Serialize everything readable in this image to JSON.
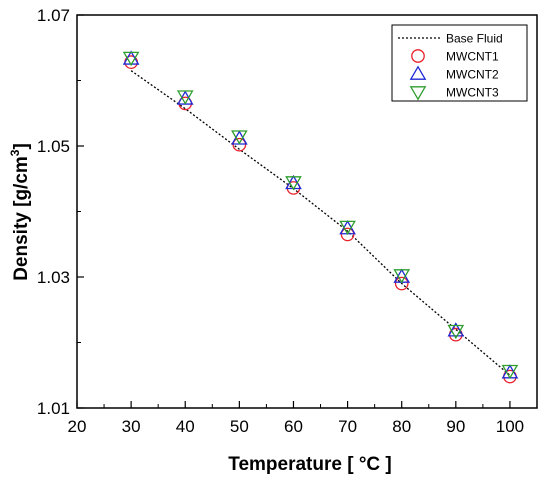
{
  "chart_data": {
    "type": "scatter",
    "xlabel": "Temperature [ °C ]",
    "ylabel_main": "Density [g/cm",
    "ylabel_sup": "3",
    "ylabel_end": "]",
    "xlim": [
      20,
      105
    ],
    "ylim": [
      1.01,
      1.07
    ],
    "x_ticks": [
      20,
      30,
      40,
      50,
      60,
      70,
      80,
      90,
      100
    ],
    "y_ticks": [
      1.01,
      1.03,
      1.05,
      1.07
    ],
    "y_tick_labels": [
      "1.01",
      "1.03",
      "1.05",
      "1.07"
    ],
    "y_minor_ticks": [
      1.02,
      1.04,
      1.06
    ],
    "x_minor_ticks": [
      25,
      35,
      45,
      55,
      65,
      75,
      85,
      95
    ],
    "legend_position": "top-right",
    "grid": false,
    "series": [
      {
        "name": "Base Fluid",
        "style": "dotted-line",
        "color": "#000000",
        "x": [
          30,
          40,
          50,
          60,
          70,
          80,
          90,
          100
        ],
        "y": [
          1.0615,
          1.0557,
          1.0495,
          1.0435,
          1.037,
          1.029,
          1.022,
          1.015
        ]
      },
      {
        "name": "MWCNT1",
        "style": "circle",
        "color": "#e8202a",
        "x": [
          30,
          40,
          50,
          60,
          70,
          80,
          90,
          100
        ],
        "y": [
          1.0628,
          1.0565,
          1.0502,
          1.0436,
          1.0365,
          1.029,
          1.0212,
          1.0148
        ]
      },
      {
        "name": "MWCNT2",
        "style": "triangle-up",
        "color": "#1f2ad6",
        "x": [
          30,
          40,
          50,
          60,
          70,
          80,
          90,
          100
        ],
        "y": [
          1.0633,
          1.0572,
          1.0511,
          1.0443,
          1.0374,
          1.03,
          1.0218,
          1.0154
        ]
      },
      {
        "name": "MWCNT3",
        "style": "triangle-down",
        "color": "#2e9e2e",
        "x": [
          30,
          40,
          50,
          60,
          70,
          80,
          90,
          100
        ],
        "y": [
          1.0635,
          1.0576,
          1.0515,
          1.0445,
          1.0377,
          1.0303,
          1.0218,
          1.0157
        ]
      }
    ]
  }
}
